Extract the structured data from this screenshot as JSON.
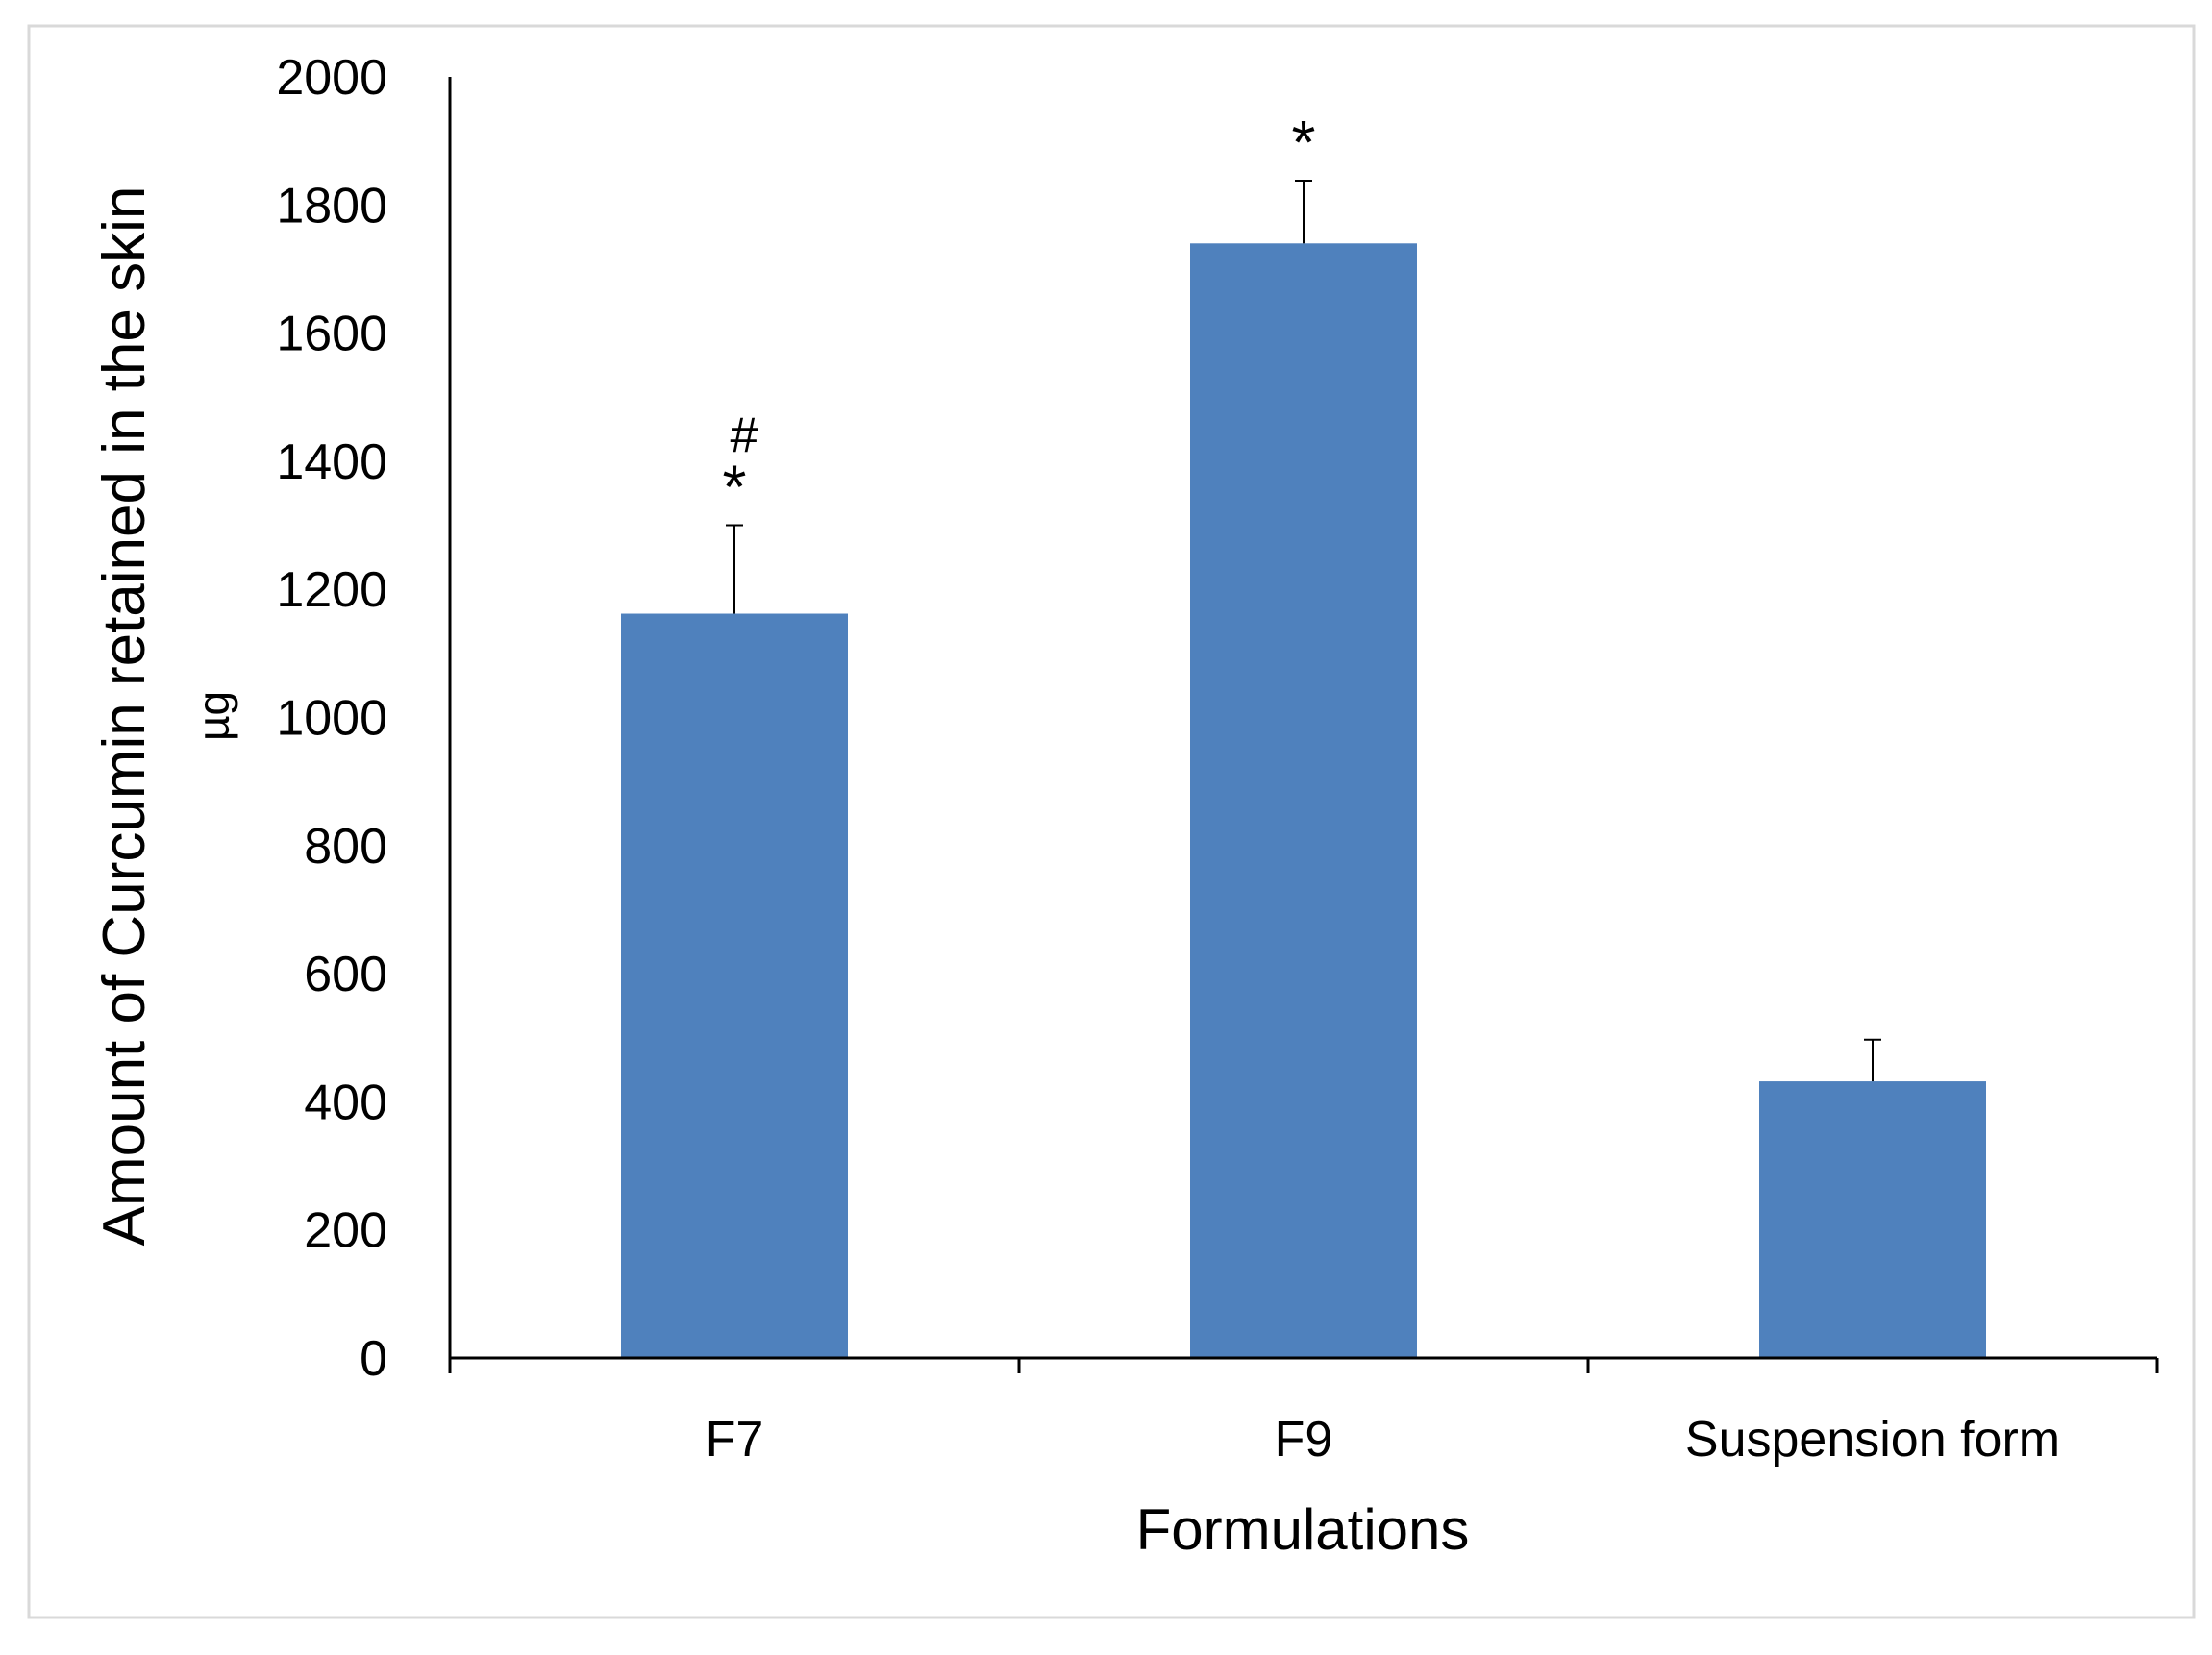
{
  "chart_data": {
    "type": "bar",
    "title": "",
    "xlabel": "Formulations",
    "ylabel_line1": "Amount of Curcumin retained in the skin",
    "ylabel_line2": "µg",
    "categories": [
      "F7",
      "F9",
      "Suspension form"
    ],
    "values": [
      1162,
      1740,
      432
    ],
    "error_upper": [
      138,
      98,
      65
    ],
    "annotations": [
      {
        "category": "F7",
        "symbols": [
          "*",
          "#"
        ]
      },
      {
        "category": "F9",
        "symbols": [
          "*"
        ]
      },
      {
        "category": "Suspension form",
        "symbols": []
      }
    ],
    "ylim": [
      0,
      2000
    ],
    "yticks": [
      "0",
      "200",
      "400",
      "600",
      "800",
      "1000",
      "1200",
      "1400",
      "1600",
      "1800",
      "2000"
    ],
    "grid": false,
    "legend": "none",
    "bar_color": "#4f81bd",
    "axis_color": "#000000",
    "frame_color": "#d9d9d9"
  }
}
